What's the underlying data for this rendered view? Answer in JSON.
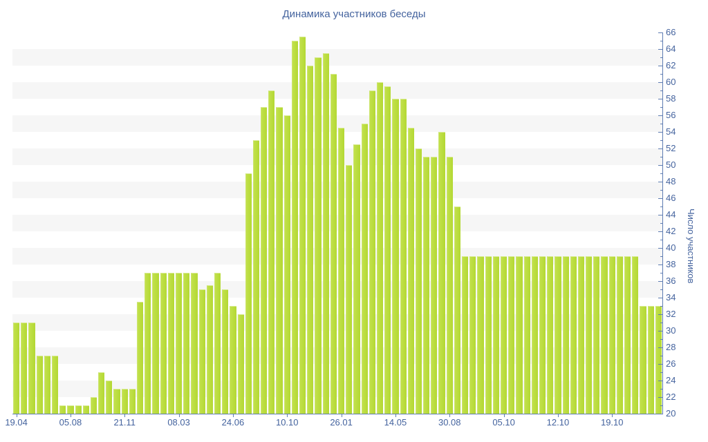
{
  "title": "Динамика участников беседы",
  "colors": {
    "bar": "#b7db3c",
    "bar_highlight": "#d9eb94",
    "band": "#f6f6f6",
    "axis_line": "#5e7cb2",
    "axis_text": "#44639e",
    "background": "#ffffff"
  },
  "y_axis": {
    "label": "Число участников",
    "min": 20,
    "max": 66,
    "label_step": 2,
    "minor_tick_step": 1
  },
  "chart_data": {
    "type": "bar",
    "title": "Динамика участников беседы",
    "xlabel": "",
    "ylabel": "Число участников",
    "ylim": [
      20,
      66
    ],
    "grid": "horizontal gray bands 2 units tall every 4 units (22-24, 26-28, ... 62-64)",
    "legend": "none",
    "x_tick_labels": [
      "19.04",
      "05.08",
      "21.11",
      "08.03",
      "24.06",
      "10.10",
      "26.01",
      "14.05",
      "30.08",
      "05.10",
      "12.10",
      "19.10"
    ],
    "x_tick_bar_indices": [
      0,
      7,
      14,
      21,
      28,
      35,
      42,
      49,
      56,
      63,
      70,
      77
    ],
    "values": [
      31,
      31,
      31,
      27,
      27,
      27,
      21,
      21,
      21,
      21,
      22,
      25,
      24,
      23,
      23,
      23,
      33.5,
      37,
      37,
      37,
      37,
      37,
      37,
      37,
      35,
      35.5,
      37,
      35,
      33,
      32,
      49,
      53,
      57,
      59,
      57,
      56,
      65,
      65.5,
      62,
      63,
      63.5,
      61,
      54.5,
      50,
      52.5,
      55,
      59,
      60,
      59.5,
      58,
      58,
      54.5,
      52,
      51,
      51,
      54,
      51,
      45,
      39,
      39,
      39,
      39,
      39,
      39,
      39,
      39,
      39,
      39,
      39,
      39,
      39,
      39,
      39,
      39,
      39,
      39,
      39,
      39,
      39,
      39,
      39,
      33,
      33,
      33
    ]
  }
}
